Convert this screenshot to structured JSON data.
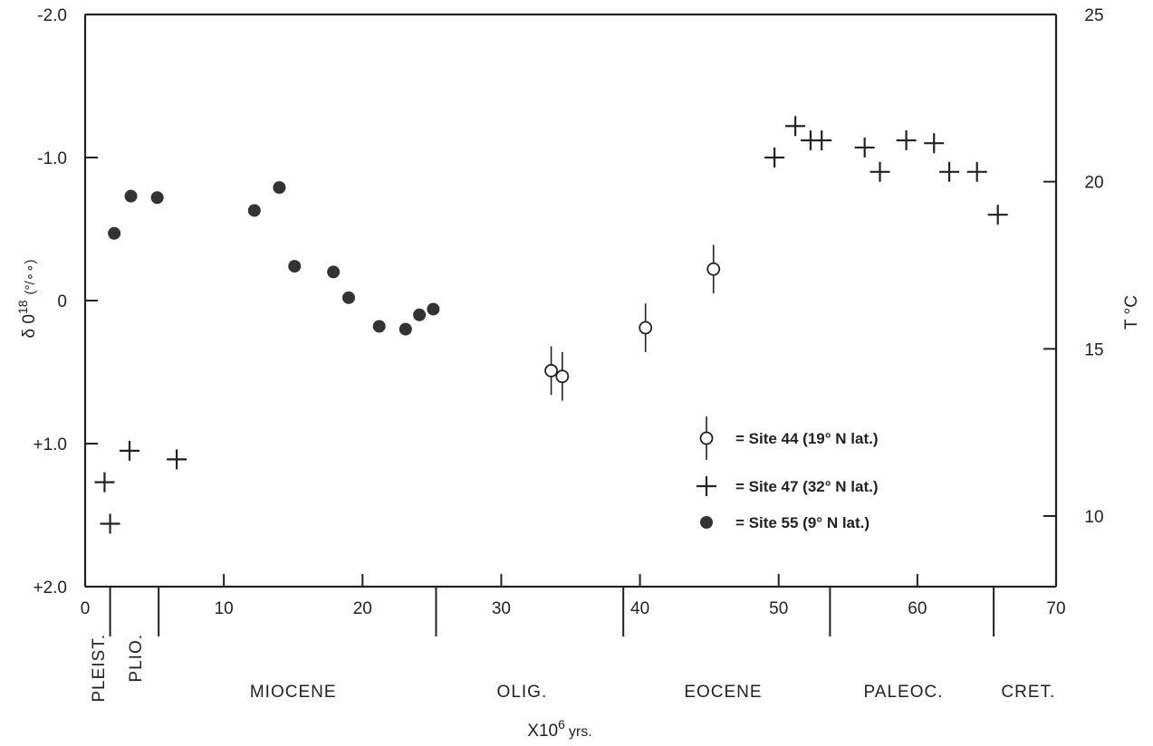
{
  "chart_data": {
    "type": "scatter",
    "title": "",
    "xlabel": {
      "base": "X10",
      "exp": "6",
      "unit": "yrs."
    },
    "ylabel": {
      "prefix": "δ 0",
      "exp": "18",
      "unit": "(°/∘∘)"
    },
    "y2label": "T °C",
    "xlim": [
      0,
      70
    ],
    "ylim": [
      2.0,
      -2.0
    ],
    "y2lim": [
      8.0,
      25.0
    ],
    "grid": false,
    "legend_position": "right",
    "x_ticks": [
      {
        "value": 0,
        "label": "0"
      },
      {
        "value": 10,
        "label": "10"
      },
      {
        "value": 20,
        "label": "20"
      },
      {
        "value": 30,
        "label": "30"
      },
      {
        "value": 40,
        "label": "40"
      },
      {
        "value": 50,
        "label": "50"
      },
      {
        "value": 60,
        "label": "60"
      },
      {
        "value": 70,
        "label": "70"
      }
    ],
    "y_ticks": [
      {
        "value": -2.0,
        "label": "-2.0"
      },
      {
        "value": -1.0,
        "label": "-1.0"
      },
      {
        "value": 0.0,
        "label": "0"
      },
      {
        "value": 1.0,
        "label": "+1.0"
      },
      {
        "value": 2.0,
        "label": "+2.0"
      }
    ],
    "y2_ticks": [
      {
        "value": 25,
        "label": "25"
      },
      {
        "value": 20,
        "label": "20"
      },
      {
        "value": 15,
        "label": "15"
      },
      {
        "value": 10,
        "label": "10"
      }
    ],
    "epoch_boundaries": [
      1.8,
      5.3,
      25.3,
      38.8,
      53.7,
      65.5
    ],
    "epochs": [
      {
        "label": "PLEIST.",
        "x": 0.9,
        "vertical": true
      },
      {
        "label": "PLIO.",
        "x": 3.6,
        "vertical": true
      },
      {
        "label": "MIOCENE",
        "x": 15.0,
        "vertical": false
      },
      {
        "label": "OLIG.",
        "x": 31.5,
        "vertical": false
      },
      {
        "label": "EOCENE",
        "x": 46.0,
        "vertical": false
      },
      {
        "label": "PALEOC.",
        "x": 59.0,
        "vertical": false
      },
      {
        "label": "CRET.",
        "x": 68.0,
        "vertical": false
      }
    ],
    "series": [
      {
        "name": "= Site 44  (19° N lat.)",
        "marker": "open-circle-errorbar",
        "points": [
          {
            "x": 33.6,
            "y": 0.49,
            "err": 0.17
          },
          {
            "x": 34.4,
            "y": 0.53,
            "err": 0.17
          },
          {
            "x": 40.4,
            "y": 0.19,
            "err": 0.17
          },
          {
            "x": 45.3,
            "y": -0.22,
            "err": 0.17
          }
        ]
      },
      {
        "name": "= Site 47 (32° N lat.)",
        "marker": "plus",
        "points": [
          {
            "x": 1.4,
            "y": 1.27
          },
          {
            "x": 1.8,
            "y": 1.56
          },
          {
            "x": 3.2,
            "y": 1.05
          },
          {
            "x": 6.6,
            "y": 1.11
          },
          {
            "x": 49.7,
            "y": -1.0
          },
          {
            "x": 51.2,
            "y": -1.22
          },
          {
            "x": 52.3,
            "y": -1.12
          },
          {
            "x": 53.1,
            "y": -1.12
          },
          {
            "x": 56.2,
            "y": -1.07
          },
          {
            "x": 57.3,
            "y": -0.9
          },
          {
            "x": 59.2,
            "y": -1.12
          },
          {
            "x": 61.2,
            "y": -1.1
          },
          {
            "x": 62.3,
            "y": -0.9
          },
          {
            "x": 64.3,
            "y": -0.9
          },
          {
            "x": 65.8,
            "y": -0.6
          }
        ]
      },
      {
        "name": "= Site 55 (9° N lat.)",
        "marker": "filled-circle",
        "points": [
          {
            "x": 2.1,
            "y": -0.47
          },
          {
            "x": 3.3,
            "y": -0.73
          },
          {
            "x": 5.2,
            "y": -0.72
          },
          {
            "x": 12.2,
            "y": -0.63
          },
          {
            "x": 14.0,
            "y": -0.79
          },
          {
            "x": 15.1,
            "y": -0.24
          },
          {
            "x": 17.9,
            "y": -0.2
          },
          {
            "x": 19.0,
            "y": -0.02
          },
          {
            "x": 21.2,
            "y": 0.18
          },
          {
            "x": 23.1,
            "y": 0.2
          },
          {
            "x": 24.1,
            "y": 0.1
          },
          {
            "x": 25.1,
            "y": 0.06
          }
        ]
      }
    ]
  }
}
